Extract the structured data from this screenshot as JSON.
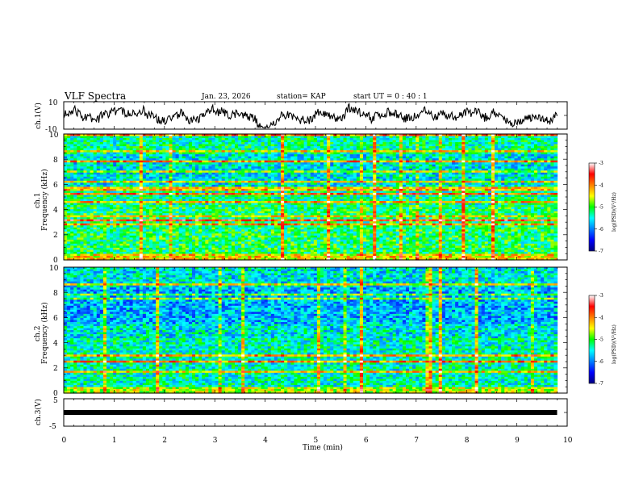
{
  "header": {
    "title": "VLF Spectra",
    "date": "Jan. 23, 2026",
    "station": "station= KAP",
    "start": "start  UT =   0  : 40 : 1"
  },
  "chart_data": [
    {
      "type": "line",
      "name": "ch1-waveform",
      "ylabel": "ch.1(V)",
      "ylim": [
        -10,
        10
      ],
      "yticks": [
        "10",
        "-10"
      ],
      "xlim": [
        0,
        9.8
      ],
      "description_values": "noisy waveform oscillating roughly between -8 and 8 V"
    },
    {
      "type": "heatmap",
      "name": "ch1-spectrogram",
      "ylabel": "ch.1 Frequency (kHz)",
      "ylim": [
        0,
        10
      ],
      "yticks": [
        "0",
        "2",
        "4",
        "6",
        "8",
        "10"
      ],
      "xlim": [
        0,
        9.8
      ],
      "colorbar": {
        "label": "log(PSD)(V²/Hz)",
        "range": [
          -7,
          -3
        ],
        "ticks": [
          "-3",
          "-4",
          "-5",
          "-6",
          "-7"
        ]
      }
    },
    {
      "type": "heatmap",
      "name": "ch2-spectrogram",
      "ylabel": "ch.2 Frequency (kHz)",
      "ylim": [
        0,
        10
      ],
      "yticks": [
        "0",
        "2",
        "4",
        "6",
        "8",
        "10"
      ],
      "xlim": [
        0,
        9.8
      ],
      "colorbar": {
        "label": "log(PSD)(V²/Hz)",
        "range": [
          -7,
          -3
        ],
        "ticks": [
          "-3",
          "-4",
          "-5",
          "-6",
          "-7"
        ]
      }
    },
    {
      "type": "line",
      "name": "ch3-waveform",
      "ylabel": "ch.3(V)",
      "ylim": [
        -5,
        5
      ],
      "yticks": [
        "5",
        "0",
        "-5"
      ],
      "xlim": [
        0,
        9.8
      ],
      "description_values": "thick near-constant band around 0 V"
    }
  ],
  "xaxis": {
    "label": "Time  (min)",
    "range": [
      0,
      10
    ],
    "ticks": [
      "0",
      "1",
      "2",
      "3",
      "4",
      "5",
      "6",
      "7",
      "8",
      "9",
      "10"
    ]
  },
  "labels": {
    "ch1_axis_a": "ch.1",
    "ch1_axis_b": "Frequency (kHz)",
    "ch2_axis_a": "ch.2",
    "ch2_axis_b": "Frequency (kHz)",
    "ch1_volt": "ch.1(V)",
    "ch3_volt": "ch.3(V)",
    "cbar1": "log(PSD)(V²/Hz)",
    "cbar2": "log(PSD)(V²/Hz)"
  },
  "colors": {
    "line": "#000000",
    "frame": "#000000"
  }
}
